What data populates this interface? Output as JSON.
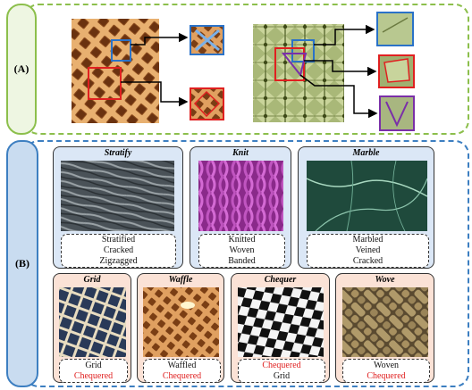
{
  "panel_a": {
    "label": "(A)"
  },
  "panel_b": {
    "label": "(B)",
    "top_row": [
      {
        "title": "Stratify",
        "labels": [
          {
            "text": "Stratified",
            "color": "black"
          },
          {
            "text": "Cracked",
            "color": "black"
          },
          {
            "text": "Zigzagged",
            "color": "black"
          }
        ]
      },
      {
        "title": "Knit",
        "labels": [
          {
            "text": "Knitted",
            "color": "black"
          },
          {
            "text": "Woven",
            "color": "black"
          },
          {
            "text": "Banded",
            "color": "black"
          }
        ]
      },
      {
        "title": "Marble",
        "labels": [
          {
            "text": "Marbled",
            "color": "black"
          },
          {
            "text": "Veined",
            "color": "black"
          },
          {
            "text": "Cracked",
            "color": "black"
          }
        ]
      }
    ],
    "bottom_row": [
      {
        "title": "Grid",
        "labels": [
          {
            "text": "Grid",
            "color": "black"
          },
          {
            "text": "Chequered",
            "color": "red"
          }
        ]
      },
      {
        "title": "Waffle",
        "labels": [
          {
            "text": "Waffled",
            "color": "black"
          },
          {
            "text": "Chequered",
            "color": "red"
          }
        ]
      },
      {
        "title": "Chequer",
        "labels": [
          {
            "text": "Chequered",
            "color": "red"
          },
          {
            "text": "Grid",
            "color": "black"
          }
        ]
      },
      {
        "title": "Wove",
        "labels": [
          {
            "text": "Woven",
            "color": "black"
          },
          {
            "text": "Chequered",
            "color": "red"
          }
        ]
      }
    ]
  },
  "colors": {
    "panel_a_border": "#8cbf4c",
    "panel_b_border": "#3d7fc1",
    "highlight_red": "#e02020",
    "highlight_blue": "#2a72c8",
    "highlight_purple": "#7a2fa8"
  }
}
